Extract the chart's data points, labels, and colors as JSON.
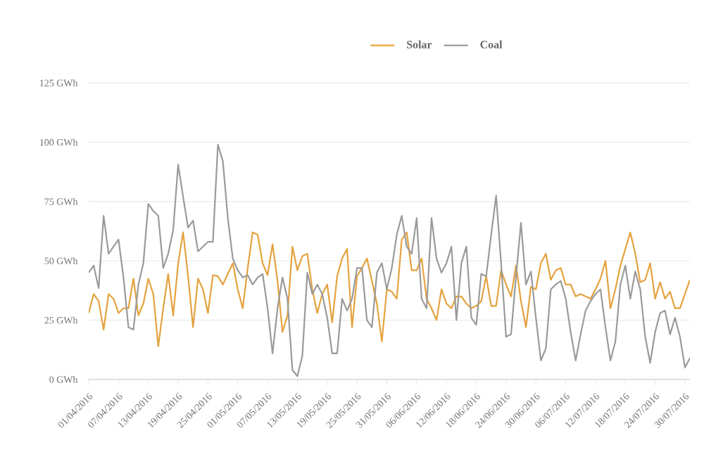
{
  "chart_data": {
    "type": "line",
    "categories": [
      "01/04/2016",
      null,
      null,
      null,
      null,
      null,
      "07/04/2016",
      null,
      null,
      null,
      null,
      null,
      "13/04/2016",
      null,
      null,
      null,
      null,
      null,
      "19/04/2016",
      null,
      null,
      null,
      null,
      null,
      "25/04/2016",
      null,
      null,
      null,
      null,
      null,
      "01/05/2016",
      null,
      null,
      null,
      null,
      null,
      "07/05/2016",
      null,
      null,
      null,
      null,
      null,
      "13/05/2016",
      null,
      null,
      null,
      null,
      null,
      "19/05/2016",
      null,
      null,
      null,
      null,
      null,
      "25/05/2016",
      null,
      null,
      null,
      null,
      null,
      "31/05/2016",
      null,
      null,
      null,
      null,
      null,
      "06/06/2016",
      null,
      null,
      null,
      null,
      null,
      "12/06/2016",
      null,
      null,
      null,
      null,
      null,
      "18/06/2016",
      null,
      null,
      null,
      null,
      null,
      "24/06/2016",
      null,
      null,
      null,
      null,
      null,
      "30/06/2016",
      null,
      null,
      null,
      null,
      null,
      "06/07/2016",
      null,
      null,
      null,
      null,
      null,
      "12/07/2016",
      null,
      null,
      null,
      null,
      null,
      "18/07/2016",
      null,
      null,
      null,
      null,
      null,
      "24/07/2016",
      null,
      null,
      null,
      null,
      null,
      "30/07/2016",
      null
    ],
    "series": [
      {
        "name": "Solar",
        "color": "#e4a23e",
        "values": [
          28,
          36,
          33,
          21,
          36,
          34,
          28,
          30,
          30,
          42.5,
          27,
          32,
          42.5,
          36,
          14,
          30,
          44.5,
          27,
          49,
          62,
          43.5,
          22,
          42.5,
          38,
          28,
          44,
          43.5,
          40,
          44.5,
          49,
          38,
          30,
          47,
          62,
          61,
          49,
          44,
          57,
          41.5,
          20,
          27,
          56,
          46,
          52,
          53,
          38,
          28,
          36,
          40,
          24,
          43.5,
          51,
          55,
          22,
          43.5,
          47,
          51,
          41.5,
          32,
          16,
          38,
          37,
          34,
          59,
          62,
          46,
          46,
          51,
          34,
          30,
          25,
          38,
          32,
          30,
          35,
          35,
          32,
          30,
          31,
          33,
          43.5,
          31,
          31,
          46,
          40,
          35,
          48,
          33,
          22,
          39,
          38,
          49,
          53,
          42,
          46,
          47,
          40,
          40,
          35,
          36,
          35,
          34,
          38,
          42.5,
          50,
          30,
          38,
          48,
          55,
          62,
          53,
          41,
          42,
          49,
          34,
          41,
          34,
          37,
          30,
          30,
          36,
          42
        ]
      },
      {
        "name": "Coal",
        "color": "#9a9a9a",
        "values": [
          45,
          48,
          38.5,
          69,
          53,
          56,
          59,
          43,
          22,
          21,
          40,
          49,
          74,
          71,
          69,
          47,
          53,
          63,
          90.6,
          77,
          64,
          67,
          54,
          56,
          58,
          58,
          99,
          92,
          68,
          51,
          46,
          43,
          44,
          40,
          43,
          44.5,
          30,
          11,
          30,
          43,
          34,
          4,
          1.4,
          10,
          45,
          36,
          40,
          36,
          26,
          11,
          11,
          34,
          29,
          34,
          47,
          47,
          25,
          22,
          45,
          49,
          38,
          47,
          61,
          69,
          56,
          53,
          68,
          34,
          30,
          68,
          51,
          45,
          49,
          56,
          25,
          49,
          56,
          26,
          23,
          44.5,
          43.5,
          61,
          77.5,
          49,
          18,
          19,
          43.5,
          66,
          40,
          45.5,
          26,
          8,
          13,
          38,
          40,
          41.5,
          34,
          20,
          8,
          19,
          29,
          33,
          36,
          38,
          22,
          8,
          16,
          40,
          48,
          34,
          45.5,
          38,
          18,
          7,
          20,
          28,
          29,
          19,
          26,
          18,
          5,
          9
        ]
      }
    ],
    "ylim": [
      0,
      125
    ],
    "yticks": [
      {
        "value": 0,
        "label": "0 GWh"
      },
      {
        "value": 25,
        "label": "25 GWh"
      },
      {
        "value": 50,
        "label": "50 GWh"
      },
      {
        "value": 75,
        "label": "75 GWh"
      },
      {
        "value": 100,
        "label": "100 GWh"
      },
      {
        "value": 125,
        "label": "125 GWh"
      }
    ],
    "grid": "y",
    "legend": "top"
  }
}
